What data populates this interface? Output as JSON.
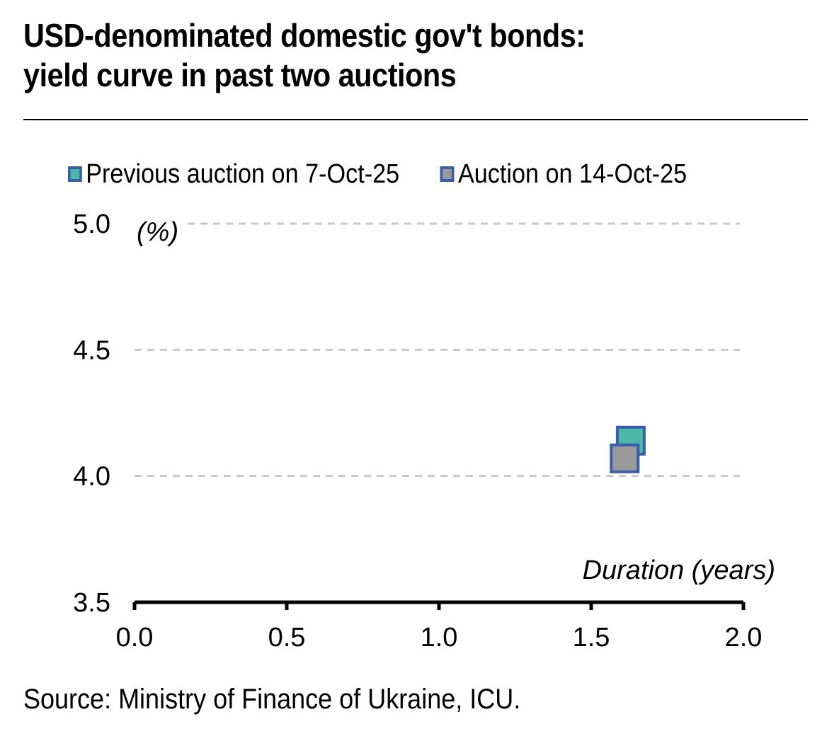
{
  "title_line1": "USD-denominated domestic gov't bonds:",
  "title_line2": "yield curve in past two auctions",
  "source": "Source: Ministry of Finance of Ukraine, ICU.",
  "colors": {
    "previous_fill": "#4bb7a8",
    "current_fill": "#9a9a9a",
    "marker_border": "#3a5ea8",
    "gridline": "#c8c8c8",
    "axis": "#000000"
  },
  "chart_data": {
    "type": "scatter",
    "title": "USD-denominated domestic gov't bonds: yield curve in past two auctions",
    "xlabel": "Duration (years)",
    "ylabel": "(%)",
    "xlim": [
      0,
      2
    ],
    "ylim": [
      3.5,
      5
    ],
    "x_ticks": [
      "0.0",
      "0.5",
      "1.0",
      "1.5",
      "2.0"
    ],
    "y_ticks": [
      "3.5",
      "4.0",
      "4.5",
      "5.0"
    ],
    "grid": "horizontal dashed",
    "legend_position": "top",
    "series": [
      {
        "name": "Previous auction on 7-Oct-25",
        "marker": "square",
        "points": [
          {
            "x": 1.63,
            "y": 4.14
          }
        ]
      },
      {
        "name": "Auction on 14-Oct-25",
        "marker": "square",
        "points": [
          {
            "x": 1.61,
            "y": 4.07
          }
        ]
      }
    ]
  }
}
